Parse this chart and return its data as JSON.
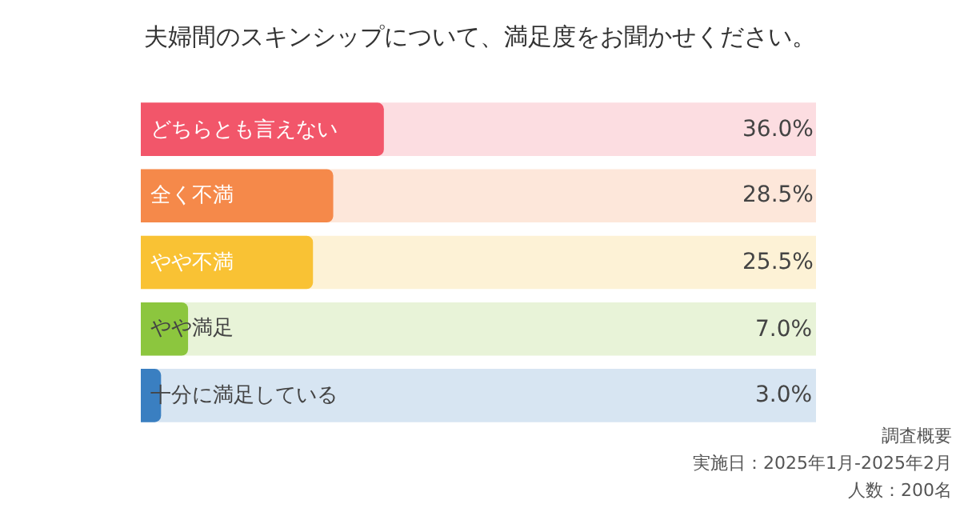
{
  "chart_data": {
    "type": "bar",
    "orientation": "horizontal",
    "title": "夫婦間のスキンシップについて、満足度をお聞かせください。",
    "categories": [
      "どちらとも言えない",
      "全く不満",
      "やや不満",
      "やや満足",
      "十分に満足している"
    ],
    "values": [
      36.0,
      28.5,
      25.5,
      7.0,
      3.0
    ],
    "value_labels": [
      "36.0%",
      "28.5%",
      "25.5%",
      "7.0%",
      "3.0%"
    ],
    "colors": [
      "#f2566a",
      "#f5894a",
      "#f9c234",
      "#8cc63e",
      "#3a7fc1"
    ],
    "xlim": [
      0,
      100
    ],
    "grid": false,
    "legend": false,
    "annotations": [
      "調査概要",
      "実施日：2025年1月-2025年2月",
      "人数：200名"
    ]
  }
}
